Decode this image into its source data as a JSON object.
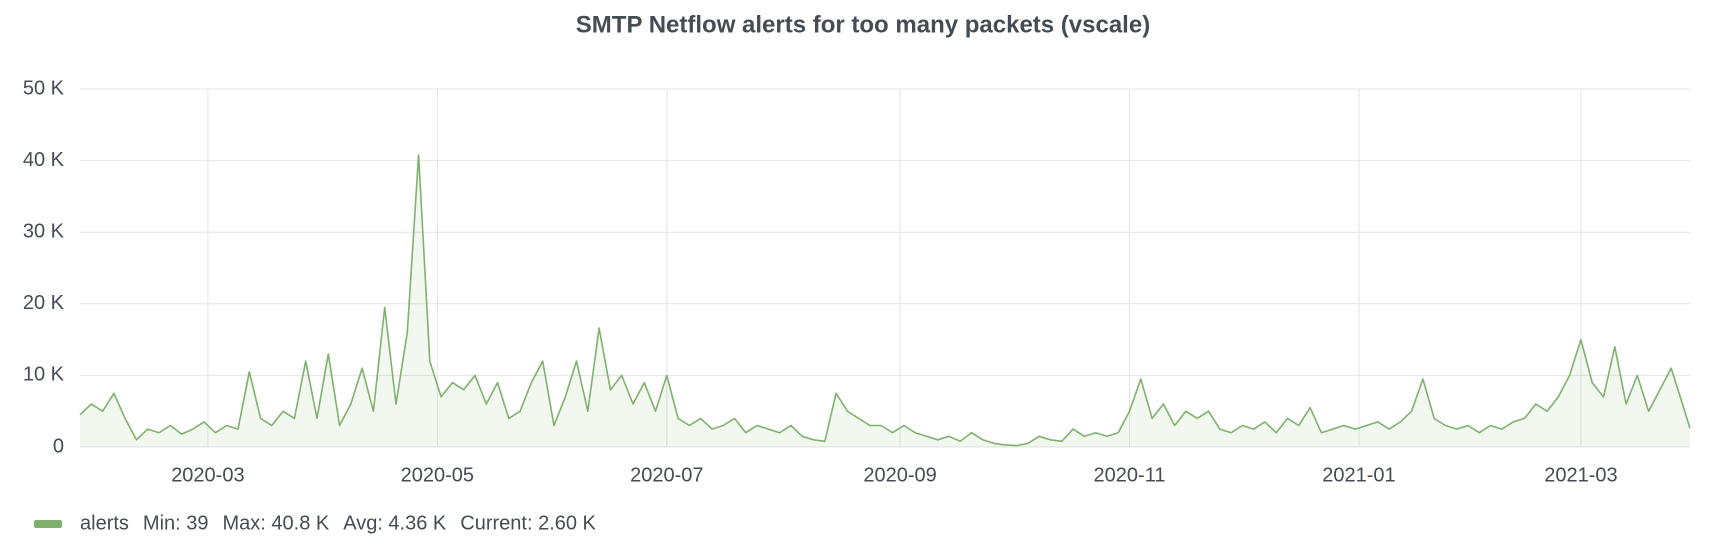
{
  "chart_data": {
    "type": "line",
    "title": "SMTP Netflow alerts for too many packets (vscale)",
    "x": [
      0,
      3,
      6,
      9,
      12,
      15,
      18,
      21,
      24,
      27,
      30,
      33,
      36,
      39,
      42,
      45,
      48,
      51,
      54,
      57,
      60,
      63,
      66,
      69,
      72,
      75,
      78,
      81,
      84,
      87,
      90,
      93,
      96,
      99,
      102,
      105,
      108,
      111,
      114,
      117,
      120,
      123,
      126,
      129,
      132,
      135,
      138,
      141,
      144,
      147,
      150,
      153,
      156,
      159,
      162,
      165,
      168,
      171,
      174,
      177,
      180,
      183,
      186,
      189,
      192,
      195,
      198,
      201,
      204,
      207,
      210,
      213,
      216,
      219,
      222,
      225,
      228,
      231,
      234,
      237,
      240,
      243,
      246,
      249,
      252,
      255,
      258,
      261,
      264,
      267,
      270,
      273,
      276,
      279,
      282,
      285,
      288,
      291,
      294,
      297,
      300,
      303,
      306,
      309,
      312,
      315,
      318,
      321,
      324,
      327,
      330,
      333,
      336,
      339,
      342,
      345,
      348,
      351,
      354,
      357,
      360,
      363,
      366,
      369,
      372,
      375,
      378,
      381,
      384,
      387,
      390,
      393,
      396,
      399,
      402,
      405,
      408,
      411,
      414,
      417,
      420,
      423,
      426,
      428
    ],
    "series": [
      {
        "name": "alerts",
        "color": "#7eb26d",
        "values": [
          4500,
          6000,
          5000,
          7500,
          4000,
          1000,
          2500,
          2000,
          3000,
          1800,
          2500,
          3500,
          2000,
          3000,
          2500,
          10500,
          4000,
          3000,
          5000,
          4000,
          12000,
          4000,
          13000,
          3000,
          6000,
          11000,
          5000,
          19500,
          6000,
          16000,
          40800,
          12000,
          7000,
          9000,
          8000,
          10000,
          6000,
          9000,
          4000,
          5000,
          9000,
          12000,
          3000,
          7000,
          12000,
          5000,
          16600,
          8000,
          10000,
          6000,
          9000,
          5000,
          10000,
          4000,
          3000,
          4000,
          2500,
          3000,
          4000,
          2000,
          3000,
          2500,
          2000,
          3000,
          1500,
          1000,
          800,
          7500,
          5000,
          4000,
          3000,
          3000,
          2000,
          3000,
          2000,
          1500,
          1000,
          1500,
          800,
          2000,
          1000,
          500,
          300,
          200,
          500,
          1500,
          1000,
          800,
          2500,
          1500,
          2000,
          1500,
          2000,
          5000,
          9500,
          4000,
          6000,
          3000,
          5000,
          4000,
          5000,
          2500,
          2000,
          3000,
          2500,
          3500,
          2000,
          4000,
          3000,
          5500,
          2000,
          2500,
          3000,
          2500,
          3000,
          3500,
          2500,
          3500,
          5000,
          9500,
          4000,
          3000,
          2500,
          3000,
          2000,
          3000,
          2500,
          3500,
          4000,
          6000,
          5000,
          7000,
          10000,
          15000,
          9000,
          7000,
          14000,
          6000,
          10000,
          5000,
          8000,
          11000,
          6000,
          2600
        ]
      }
    ],
    "xlim": [
      0,
      428
    ],
    "xticks": [
      {
        "value": 34,
        "label": "2020-03"
      },
      {
        "value": 95,
        "label": "2020-05"
      },
      {
        "value": 156,
        "label": "2020-07"
      },
      {
        "value": 218,
        "label": "2020-09"
      },
      {
        "value": 279,
        "label": "2020-11"
      },
      {
        "value": 340,
        "label": "2021-01"
      },
      {
        "value": 399,
        "label": "2021-03"
      }
    ],
    "ylim": [
      0,
      50000
    ],
    "yticks": [
      0,
      {
        "value": 10000,
        "label": "10 K"
      },
      {
        "value": 20000,
        "label": "20 K"
      },
      {
        "value": 30000,
        "label": "30 K"
      },
      {
        "value": 40000,
        "label": "40 K"
      },
      {
        "value": 50000,
        "label": "50 K"
      }
    ],
    "grid": true,
    "legend": {
      "position": "bottom-left",
      "stats": [
        "Min: 39",
        "Max: 40.8 K",
        "Avg: 4.36 K",
        "Current: 2.60 K"
      ]
    }
  }
}
